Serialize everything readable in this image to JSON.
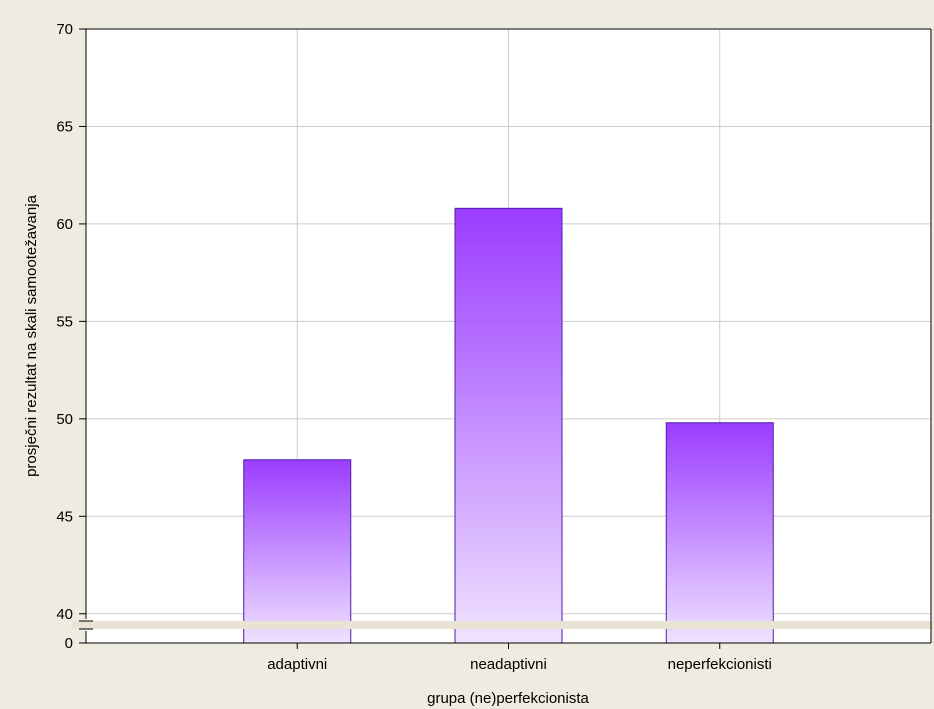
{
  "chart_data": {
    "type": "bar",
    "categories": [
      "adaptivni",
      "neadaptivni",
      "neperfekcionisti"
    ],
    "values": [
      47.9,
      60.8,
      49.8
    ],
    "xlabel": "grupa (ne)perfekcionista",
    "ylabel": "prosječni rezultat na skali samootežavanja",
    "ylim": [
      38.5,
      70
    ],
    "yticks": [
      40,
      45,
      50,
      55,
      60,
      65,
      70
    ],
    "axis_break": true,
    "y_zero_label": "0",
    "grid": true,
    "colors": {
      "bar_top": "#9b3cff",
      "bar_bottom": "#efe2ff",
      "bar_stroke": "#4a1fa8",
      "background": "#eeebe0",
      "plot_bg": "#ffffff",
      "grid": "#cccccc",
      "break_band": "#e8e3d2"
    }
  }
}
